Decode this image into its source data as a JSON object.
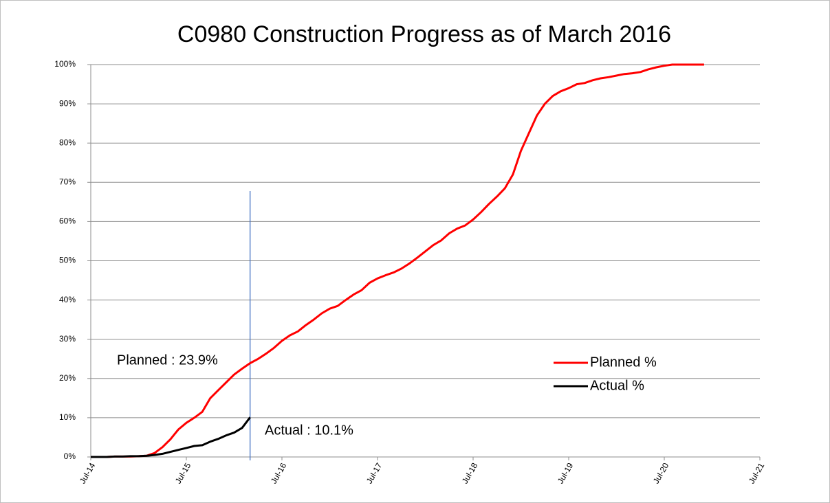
{
  "chart_data": {
    "type": "line",
    "title": "C0980 Construction Progress as of March 2016",
    "x": [
      "Jul-14",
      "Aug-14",
      "Sep-14",
      "Oct-14",
      "Nov-14",
      "Dec-14",
      "Jan-15",
      "Feb-15",
      "Mar-15",
      "Apr-15",
      "May-15",
      "Jun-15",
      "Jul-15",
      "Aug-15",
      "Sep-15",
      "Oct-15",
      "Nov-15",
      "Dec-15",
      "Jan-16",
      "Feb-16",
      "Mar-16",
      "Apr-16",
      "May-16",
      "Jun-16",
      "Jul-16",
      "Aug-16",
      "Sep-16",
      "Oct-16",
      "Nov-16",
      "Dec-16",
      "Jan-17",
      "Feb-17",
      "Mar-17",
      "Apr-17",
      "May-17",
      "Jun-17",
      "Jul-17",
      "Aug-17",
      "Sep-17",
      "Oct-17",
      "Nov-17",
      "Dec-17",
      "Jan-18",
      "Feb-18",
      "Mar-18",
      "Apr-18",
      "May-18",
      "Jun-18",
      "Jul-18",
      "Aug-18",
      "Sep-18",
      "Oct-18",
      "Nov-18",
      "Dec-18",
      "Jan-19",
      "Feb-19",
      "Mar-19",
      "Apr-19",
      "May-19",
      "Jun-19",
      "Jul-19",
      "Aug-19",
      "Sep-19",
      "Oct-19",
      "Nov-19",
      "Dec-19",
      "Jan-20",
      "Feb-20",
      "Mar-20",
      "Apr-20",
      "May-20",
      "Jun-20",
      "Jul-20",
      "Aug-20",
      "Sep-20",
      "Oct-20",
      "Nov-20",
      "Dec-20"
    ],
    "series": [
      {
        "name": "Planned %",
        "color": "#ff0000",
        "values": [
          0,
          0,
          0,
          0.1,
          0.1,
          0.1,
          0.2,
          0.3,
          1,
          2.5,
          4.5,
          7,
          8.7,
          10,
          11.5,
          15,
          17,
          19,
          21,
          22.5,
          23.9,
          25,
          26.3,
          27.8,
          29.6,
          31,
          32,
          33.6,
          35,
          36.6,
          37.8,
          38.5,
          40,
          41.4,
          42.5,
          44.4,
          45.5,
          46.3,
          47,
          48,
          49.3,
          50.8,
          52.4,
          54,
          55.2,
          57,
          58.2,
          59,
          60.5,
          62.4,
          64.5,
          66.4,
          68.5,
          72,
          78,
          82.5,
          87,
          90,
          92,
          93.2,
          94,
          95,
          95.3,
          96,
          96.5,
          96.8,
          97.2,
          97.6,
          97.8,
          98.1,
          98.8,
          99.3,
          99.7,
          100,
          100,
          100,
          100,
          100
        ]
      },
      {
        "name": "Actual %",
        "color": "#000000",
        "values": [
          0,
          0,
          0,
          0.1,
          0.1,
          0.2,
          0.2,
          0.3,
          0.5,
          0.8,
          1.3,
          1.8,
          2.3,
          2.8,
          3,
          3.9,
          4.6,
          5.5,
          6.2,
          7.4,
          10.1,
          null,
          null,
          null,
          null,
          null,
          null,
          null,
          null,
          null,
          null,
          null,
          null,
          null,
          null,
          null,
          null,
          null,
          null,
          null,
          null,
          null,
          null,
          null,
          null,
          null,
          null,
          null,
          null,
          null,
          null,
          null,
          null,
          null,
          null,
          null,
          null,
          null,
          null,
          null,
          null,
          null,
          null,
          null,
          null,
          null,
          null,
          null,
          null,
          null,
          null,
          null,
          null,
          null,
          null,
          null,
          null,
          null
        ]
      }
    ],
    "xlim": [
      "Jul-14",
      "Jul-21"
    ],
    "xticks": [
      "Jul-14",
      "Jul-15",
      "Jul-16",
      "Jul-17",
      "Jul-18",
      "Jul-19",
      "Jul-20",
      "Jul-21"
    ],
    "ylim": [
      0,
      100
    ],
    "yticks": [
      {
        "value": 0,
        "label": "0%"
      },
      {
        "value": 10,
        "label": "10%"
      },
      {
        "value": 20,
        "label": "20%"
      },
      {
        "value": 30,
        "label": "30%"
      },
      {
        "value": 40,
        "label": "40%"
      },
      {
        "value": 50,
        "label": "50%"
      },
      {
        "value": 60,
        "label": "60%"
      },
      {
        "value": 70,
        "label": "70%"
      },
      {
        "value": 80,
        "label": "80%"
      },
      {
        "value": 90,
        "label": "90%"
      },
      {
        "value": 100,
        "label": "100%"
      }
    ],
    "grid": true,
    "legend": "right",
    "reference_line": {
      "x": "Mar-16",
      "color": "#4472c4"
    },
    "annotations": [
      "Planned : 23.9%",
      "Actual : 10.1%"
    ]
  }
}
